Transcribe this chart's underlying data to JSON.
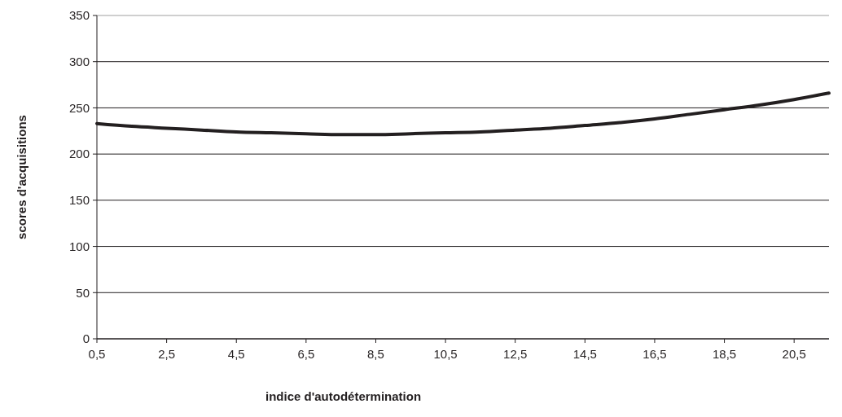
{
  "chart_data": {
    "type": "line",
    "xlabel": "indice d'autodétermination",
    "ylabel": "scores d'acquisitions",
    "x": [
      0.5,
      1.5,
      2.5,
      3.5,
      4.5,
      5.5,
      6.5,
      7.5,
      8.5,
      9.5,
      10.5,
      11.5,
      12.5,
      13.5,
      14.5,
      15.5,
      16.5,
      17.5,
      18.5,
      19.5,
      20.5,
      21.5
    ],
    "series": [
      {
        "color": "#231f20",
        "values": [
          233,
          230,
          228,
          226,
          224,
          223,
          222,
          221,
          221,
          222,
          223,
          224,
          226,
          228,
          231,
          234,
          238,
          243,
          248,
          253,
          259,
          266
        ]
      }
    ],
    "xlim": [
      0.5,
      21.5
    ],
    "xticks": [
      {
        "value": 0.5,
        "label": "0,5"
      },
      {
        "value": 2.5,
        "label": "2,5"
      },
      {
        "value": 4.5,
        "label": "4,5"
      },
      {
        "value": 6.5,
        "label": "6,5"
      },
      {
        "value": 8.5,
        "label": "8,5"
      },
      {
        "value": 10.5,
        "label": "10,5"
      },
      {
        "value": 12.5,
        "label": "12,5"
      },
      {
        "value": 14.5,
        "label": "14,5"
      },
      {
        "value": 16.5,
        "label": "16,5"
      },
      {
        "value": 18.5,
        "label": "18,5"
      },
      {
        "value": 20.5,
        "label": "20,5"
      }
    ],
    "ylim": [
      0,
      350
    ],
    "yticks": [
      0,
      50,
      100,
      150,
      200,
      250,
      300,
      350
    ],
    "grid": "y",
    "marker": "none",
    "line_style": "solid"
  }
}
